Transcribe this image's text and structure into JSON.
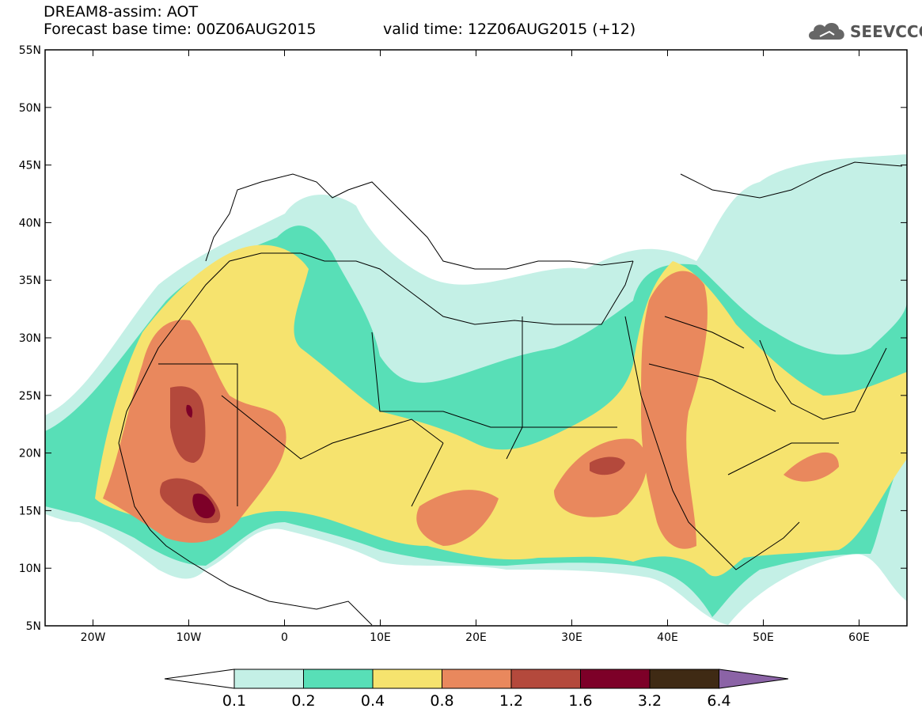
{
  "title": {
    "line1": "DREAM8-assim: AOT",
    "line2": "Forecast base time: 00Z06AUG2015",
    "valid": "valid time: 12Z06AUG2015 (+12)"
  },
  "logo": {
    "text": "SEEVCCC",
    "icon": "cloud-icon"
  },
  "map": {
    "lat_labels": [
      "55N",
      "50N",
      "45N",
      "40N",
      "35N",
      "30N",
      "25N",
      "20N",
      "15N",
      "10N",
      "5N"
    ],
    "lon_labels": [
      "20W",
      "10W",
      "0",
      "10E",
      "20E",
      "30E",
      "40E",
      "50E",
      "60E"
    ],
    "extent": {
      "lon_min": -25,
      "lon_max": 65,
      "lat_min": 5,
      "lat_max": 55
    }
  },
  "colorbar": {
    "labels": [
      "0.1",
      "0.2",
      "0.4",
      "0.8",
      "1.2",
      "1.6",
      "3.2",
      "6.4"
    ],
    "colors": [
      "#ffffff",
      "#c4f0e6",
      "#58dfb7",
      "#f6e36e",
      "#e9885d",
      "#b4493c",
      "#7d0028",
      "#3f2a14",
      "#8b63a6"
    ]
  },
  "colors": {
    "c01": "#c4f0e6",
    "c02": "#58dfb7",
    "c04": "#f6e36e",
    "c08": "#e9885d",
    "c12": "#b4493c",
    "c16": "#7d0028"
  }
}
